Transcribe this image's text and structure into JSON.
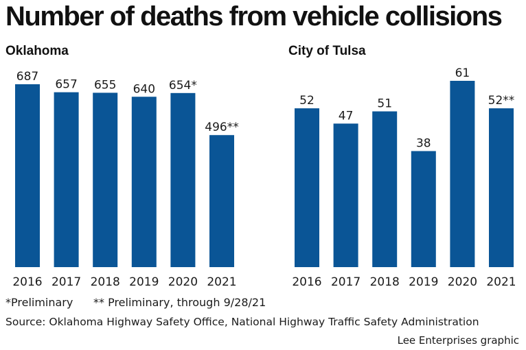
{
  "title": "Number of deaths from vehicle collisions",
  "chart_data": [
    {
      "type": "bar",
      "title": "Oklahoma",
      "categories": [
        "2016",
        "2017",
        "2018",
        "2019",
        "2020",
        "2021"
      ],
      "values": [
        687,
        657,
        655,
        640,
        654,
        496
      ],
      "value_labels": [
        "687",
        "657",
        "655",
        "640",
        "654*",
        "496**"
      ],
      "ylim": [
        0,
        687
      ],
      "grid": false,
      "bar_color": "#0a5596"
    },
    {
      "type": "bar",
      "title": "City of Tulsa",
      "categories": [
        "2016",
        "2017",
        "2018",
        "2019",
        "2020",
        "2021"
      ],
      "values": [
        52,
        47,
        51,
        38,
        61,
        52
      ],
      "value_labels": [
        "52",
        "47",
        "51",
        "38",
        "61",
        "52**"
      ],
      "ylim": [
        0,
        61
      ],
      "grid": false,
      "bar_color": "#0a5596"
    }
  ],
  "notes": {
    "preliminary": "*Preliminary",
    "preliminary_through": "** Preliminary, through 9/28/21",
    "source": "Source: Oklahoma Highway Safety Office, National Highway Traffic Safety Administration",
    "credit": "Lee Enterprises graphic"
  }
}
